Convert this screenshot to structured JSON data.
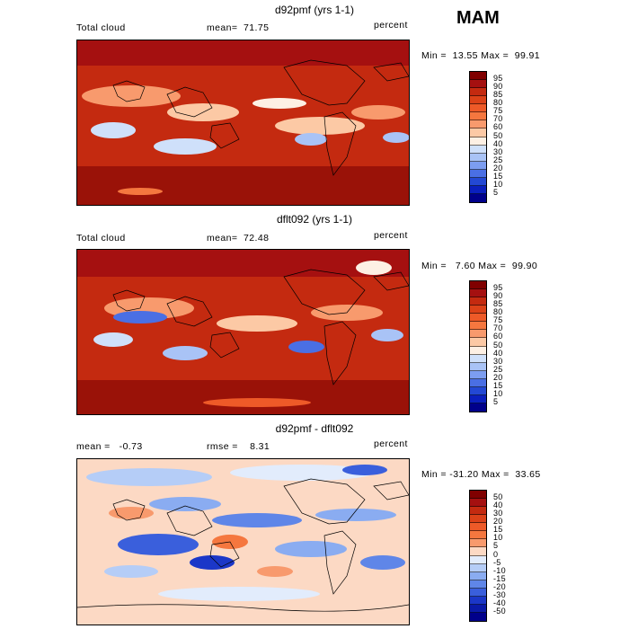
{
  "season": "MAM",
  "panels": [
    {
      "title": "d92pmf (yrs 1-1)",
      "left_label": "Total cloud",
      "mean_label": "mean=",
      "mean_value": "71.75",
      "units": "percent",
      "min_label": "Min =",
      "min_value": "13.55",
      "max_label": "Max =",
      "max_value": "99.91",
      "legend": [
        "95",
        "90",
        "85",
        "80",
        "75",
        "70",
        "60",
        "50",
        "40",
        "30",
        "25",
        "20",
        "15",
        "10",
        "5"
      ],
      "colors": [
        "#800000",
        "#a51010",
        "#c42a10",
        "#dc4218",
        "#ee5a28",
        "#f5773f",
        "#f89a6d",
        "#fcc9a5",
        "#fdf0e4",
        "#cfe0fa",
        "#a9c3f6",
        "#7c9df0",
        "#4a6fe4",
        "#2348d4",
        "#0a1fbe",
        "#00008b"
      ]
    },
    {
      "title": "dflt092 (yrs 1-1)",
      "left_label": "Total cloud",
      "mean_label": "mean=",
      "mean_value": "72.48",
      "units": "percent",
      "min_label": "Min =",
      "min_value": "7.60",
      "max_label": "Max =",
      "max_value": "99.90",
      "legend": [
        "95",
        "90",
        "85",
        "80",
        "75",
        "70",
        "60",
        "50",
        "40",
        "30",
        "25",
        "20",
        "15",
        "10",
        "5"
      ],
      "colors": [
        "#800000",
        "#a51010",
        "#c42a10",
        "#dc4218",
        "#ee5a28",
        "#f5773f",
        "#f89a6d",
        "#fcc9a5",
        "#fdf0e4",
        "#cfe0fa",
        "#a9c3f6",
        "#7c9df0",
        "#4a6fe4",
        "#2348d4",
        "#0a1fbe",
        "#00008b"
      ]
    },
    {
      "title": "d92pmf - dflt092",
      "left_label": "mean =",
      "mean_label": "rmse =",
      "left_value": "-0.73",
      "mean_value": "8.31",
      "units": "percent",
      "min_label": "Min =",
      "min_value": "-31.20",
      "max_label": "Max =",
      "max_value": "33.65",
      "legend": [
        "50",
        "40",
        "30",
        "20",
        "15",
        "10",
        "5",
        "0",
        "-5",
        "-10",
        "-15",
        "-20",
        "-30",
        "-40",
        "-50"
      ],
      "colors": [
        "#800000",
        "#a51010",
        "#c42a10",
        "#dc4218",
        "#ee5a28",
        "#f5773f",
        "#f89a6d",
        "#fcd9c4",
        "#e2ecfc",
        "#b5cdf7",
        "#8aacf1",
        "#5f86e8",
        "#3a5fdc",
        "#1b37c8",
        "#0a1aa8",
        "#00008b"
      ]
    }
  ]
}
